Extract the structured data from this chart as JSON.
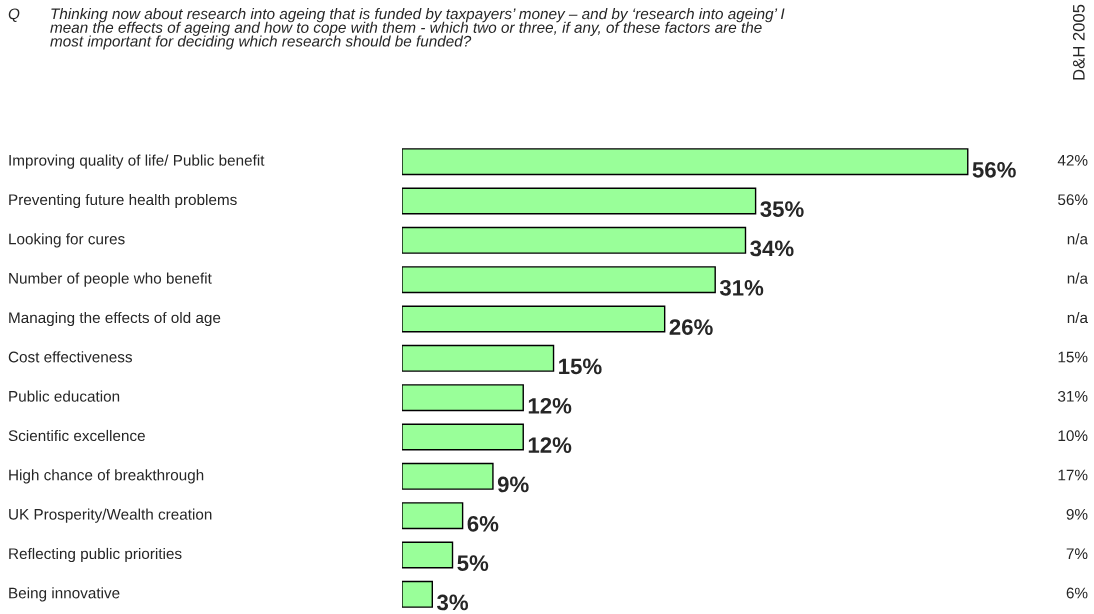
{
  "chart_data": {
    "type": "bar",
    "orientation": "horizontal",
    "title": "Thinking now about research into ageing that is funded by taxpayers’ money – and by ‘research into ageing’ I mean the effects of ageing and how to cope with them - which two or three, if any, of these factors are the most important for deciding which research should be funded?",
    "categories": [
      "Improving quality of life/ Public benefit",
      "Preventing future health problems",
      "Looking for cures",
      "Number of people who benefit",
      "Managing the effects of old age",
      "Cost effectiveness",
      "Public education",
      "Scientific excellence",
      "High chance of breakthrough",
      "UK Prosperity/Wealth creation",
      "Reflecting public priorities",
      "Being innovative"
    ],
    "values": [
      56,
      35,
      34,
      31,
      26,
      15,
      12,
      12,
      9,
      6,
      5,
      3
    ],
    "value_labels": [
      "56%",
      "35%",
      "34%",
      "31%",
      "26%",
      "15%",
      "12%",
      "12%",
      "9%",
      "6%",
      "5%",
      "3%"
    ],
    "color": "#99ff99",
    "annotations": [
      "Q",
      "D&H 2005",
      "42%",
      "56%",
      "n/a",
      "n/a",
      "n/a",
      "15%",
      "31%",
      "10%",
      "17%",
      "9%",
      "7%",
      "6%"
    ],
    "legend": false
  }
}
